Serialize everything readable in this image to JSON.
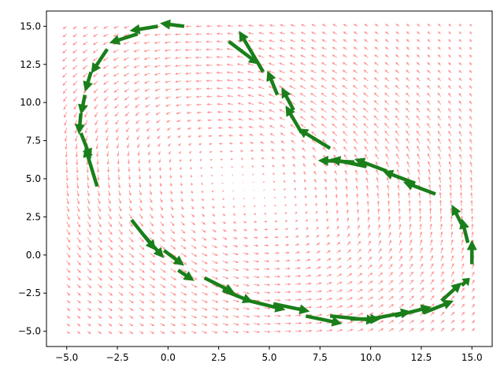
{
  "chart_data": {
    "type": "quiver",
    "title": "",
    "xlabel": "",
    "ylabel": "",
    "xlim": [
      -6.0,
      16.0
    ],
    "ylim": [
      -6.0,
      16.0
    ],
    "xticks": [
      -5.0,
      -2.5,
      0.0,
      2.5,
      5.0,
      7.5,
      10.0,
      12.5,
      15.0
    ],
    "yticks": [
      -5.0,
      -2.5,
      0.0,
      2.5,
      5.0,
      7.5,
      10.0,
      12.5,
      15.0
    ],
    "xtick_labels": [
      "−5.0",
      "−2.5",
      "0.0",
      "2.5",
      "5.0",
      "7.5",
      "10.0",
      "12.5",
      "15.0"
    ],
    "ytick_labels": [
      "−5.0",
      "−2.5",
      "0.0",
      "2.5",
      "5.0",
      "7.5",
      "10.0",
      "12.5",
      "15.0"
    ],
    "grid": false,
    "background_field": {
      "color": "#ff8080",
      "x_range": [
        -5.0,
        15.0
      ],
      "y_range": [
        -5.0,
        15.0
      ],
      "grid_n": 40,
      "vortices": [
        {
          "x": 0.0,
          "y": 7.0,
          "rotation": "counterclockwise"
        },
        {
          "x": 7.5,
          "y": 2.0,
          "rotation": "counterclockwise"
        }
      ]
    },
    "trajectory": {
      "color": "#1a7f1a",
      "arrows": [
        {
          "x": 0.8,
          "y": 15.0,
          "dx": -1.2,
          "dy": 0.2
        },
        {
          "x": -0.5,
          "y": 15.0,
          "dx": -1.4,
          "dy": -0.3
        },
        {
          "x": -1.5,
          "y": 14.5,
          "dx": -1.4,
          "dy": -0.6
        },
        {
          "x": -3.0,
          "y": 13.5,
          "dx": -0.8,
          "dy": -1.6
        },
        {
          "x": -3.8,
          "y": 12.0,
          "dx": -0.3,
          "dy": -1.3
        },
        {
          "x": -4.1,
          "y": 10.5,
          "dx": -0.2,
          "dy": -1.3
        },
        {
          "x": -4.3,
          "y": 9.3,
          "dx": -0.1,
          "dy": -1.4
        },
        {
          "x": -4.3,
          "y": 8.0,
          "dx": 0.5,
          "dy": -1.7
        },
        {
          "x": -3.5,
          "y": 4.5,
          "dx": -0.6,
          "dy": 2.6
        },
        {
          "x": -1.8,
          "y": 2.3,
          "dx": 1.2,
          "dy": -2.0
        },
        {
          "x": -1.2,
          "y": 1.3,
          "dx": 1.0,
          "dy": -1.5
        },
        {
          "x": -0.2,
          "y": 0.3,
          "dx": 1.0,
          "dy": -1.0
        },
        {
          "x": 0.5,
          "y": -1.0,
          "dx": 0.8,
          "dy": -0.7
        },
        {
          "x": 1.8,
          "y": -1.5,
          "dx": 1.5,
          "dy": -1.0
        },
        {
          "x": 2.7,
          "y": -2.3,
          "dx": 1.5,
          "dy": -0.8
        },
        {
          "x": 4.0,
          "y": -3.0,
          "dx": 1.8,
          "dy": -0.6
        },
        {
          "x": 5.2,
          "y": -3.2,
          "dx": 1.8,
          "dy": -0.5
        },
        {
          "x": 6.8,
          "y": -4.0,
          "dx": 1.8,
          "dy": -0.5
        },
        {
          "x": 8.0,
          "y": -4.0,
          "dx": 2.3,
          "dy": -0.3
        },
        {
          "x": 9.0,
          "y": -4.2,
          "dx": 1.5,
          "dy": 0.0
        },
        {
          "x": 10.0,
          "y": -4.2,
          "dx": 2.0,
          "dy": 0.5
        },
        {
          "x": 11.2,
          "y": -4.0,
          "dx": 1.8,
          "dy": 0.6
        },
        {
          "x": 12.6,
          "y": -3.8,
          "dx": 1.5,
          "dy": 0.8
        },
        {
          "x": 13.5,
          "y": -3.0,
          "dx": 1.0,
          "dy": 1.2
        },
        {
          "x": 14.5,
          "y": -2.0,
          "dx": 0.4,
          "dy": 0.5
        },
        {
          "x": 15.0,
          "y": -0.6,
          "dx": 0.0,
          "dy": 1.6
        },
        {
          "x": 14.8,
          "y": 0.8,
          "dx": -0.3,
          "dy": 1.6
        },
        {
          "x": 14.5,
          "y": 2.0,
          "dx": -0.5,
          "dy": 1.3
        },
        {
          "x": 13.2,
          "y": 4.0,
          "dx": -1.6,
          "dy": 0.8
        },
        {
          "x": 12.2,
          "y": 4.7,
          "dx": -1.6,
          "dy": 0.8
        },
        {
          "x": 10.8,
          "y": 5.5,
          "dx": -1.6,
          "dy": 0.8
        },
        {
          "x": 9.8,
          "y": 5.8,
          "dx": -1.8,
          "dy": 0.5
        },
        {
          "x": 9.2,
          "y": 6.1,
          "dx": -1.8,
          "dy": 0.1
        },
        {
          "x": 8.0,
          "y": 7.0,
          "dx": -1.6,
          "dy": 1.3
        },
        {
          "x": 6.6,
          "y": 8.0,
          "dx": -0.8,
          "dy": 1.8
        },
        {
          "x": 6.2,
          "y": 9.5,
          "dx": -0.6,
          "dy": 1.5
        },
        {
          "x": 5.4,
          "y": 10.5,
          "dx": -0.5,
          "dy": 1.6
        },
        {
          "x": 4.7,
          "y": 12.0,
          "dx": -1.2,
          "dy": 2.7
        },
        {
          "x": 3.0,
          "y": 14.0,
          "dx": 1.5,
          "dy": -1.5
        }
      ]
    }
  }
}
